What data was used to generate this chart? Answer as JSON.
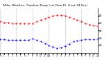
{
  "title": "  Milw. Weather  Outdoor Temp (vs) Dew Pt  (Last 24 Hrs)",
  "title_fontsize": 3.2,
  "bg_color": "#ffffff",
  "plot_bg_color": "#ffffff",
  "grid_color": "#888888",
  "temp": [
    52,
    51,
    51,
    50,
    50,
    50,
    50,
    50,
    50,
    52,
    54,
    56,
    58,
    60,
    61,
    61,
    60,
    58,
    56,
    54,
    52,
    50,
    48,
    47,
    46
  ],
  "dewpoint": [
    28,
    28,
    27,
    27,
    27,
    27,
    27,
    27,
    29,
    27,
    25,
    23,
    20,
    18,
    16,
    17,
    19,
    22,
    25,
    26,
    27,
    28,
    28,
    28,
    28
  ],
  "temp_color": "#ff0000",
  "dew_color": "#0000ff",
  "ylim_min": 10,
  "ylim_max": 70,
  "ytick_labels": [
    "20",
    "30",
    "40",
    "50",
    "60"
  ],
  "ytick_vals": [
    20,
    30,
    40,
    50,
    60
  ],
  "marker_size": 1.2,
  "line_width": 0.5,
  "vline_x": [
    0,
    4,
    8,
    12,
    16,
    20,
    24
  ],
  "n_points": 25
}
